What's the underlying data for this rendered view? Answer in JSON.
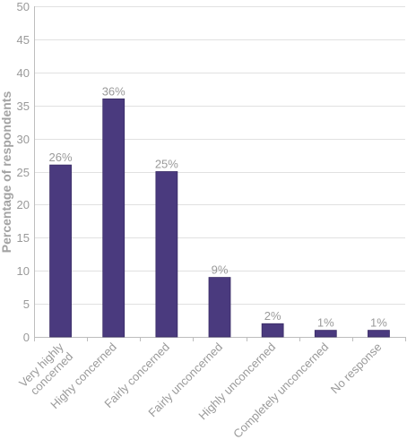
{
  "chart_data": {
    "type": "bar",
    "title": "",
    "xlabel": "",
    "ylabel": "Percentage of respondents",
    "ylim": [
      0,
      50
    ],
    "yticks": [
      0,
      5,
      10,
      15,
      20,
      25,
      30,
      35,
      40,
      45,
      50
    ],
    "grid": true,
    "legend": "none",
    "categories": [
      "Very highly concerned",
      "Highy concerned",
      "Fairly concerned",
      "Fairly unconcerned",
      "Highly unconcerned",
      "Completely unconcerned",
      "No response"
    ],
    "values": [
      26,
      36,
      25,
      9,
      2,
      1,
      1
    ],
    "data_labels": [
      "26%",
      "36%",
      "25%",
      "9%",
      "2%",
      "1%",
      "1%"
    ],
    "colors": {
      "bar": "#4a3a7e",
      "bar_edge": "#3a2d66",
      "grid": "#e1e1e1",
      "axis": "#bdbdbd",
      "text": "#9a9a9a"
    }
  }
}
